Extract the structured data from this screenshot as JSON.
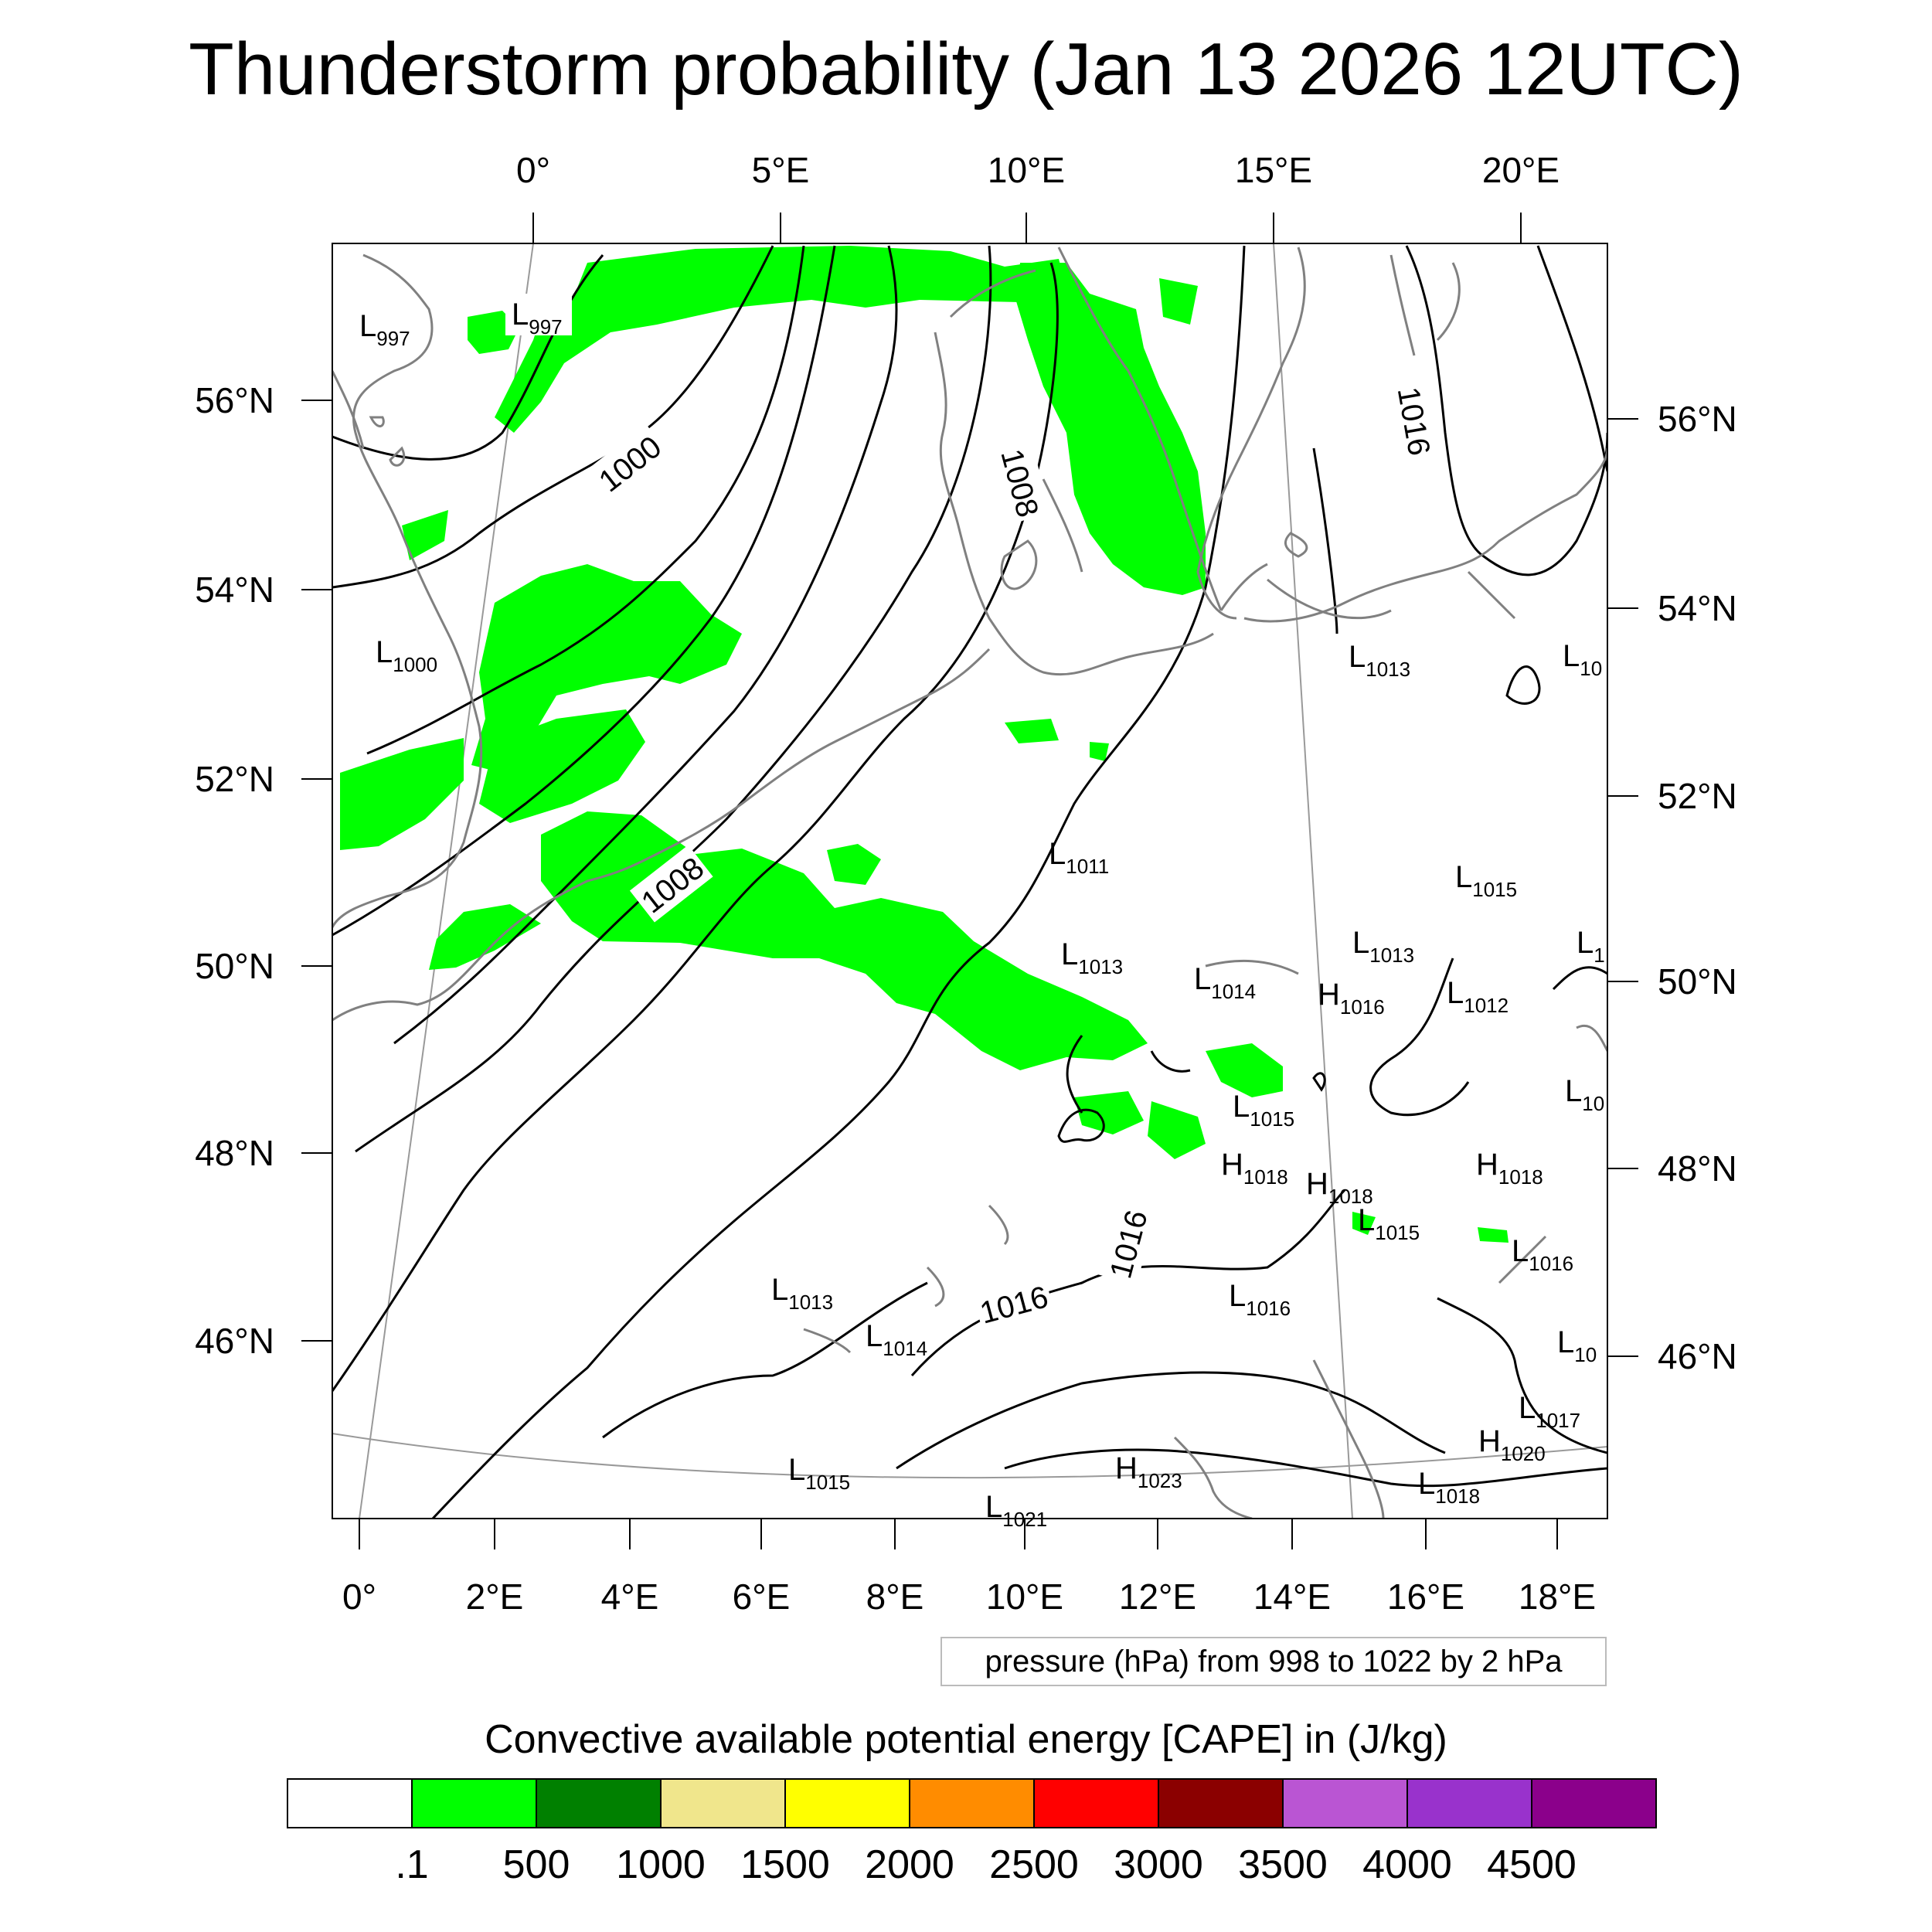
{
  "title": "Thunderstorm probability (Jan 13 2026 12UTC)",
  "top_lon_labels": [
    "0°",
    "5°E",
    "10°E",
    "15°E",
    "20°E"
  ],
  "bottom_lon_labels": [
    "0°",
    "2°E",
    "4°E",
    "6°E",
    "8°E",
    "10°E",
    "12°E",
    "14°E",
    "16°E",
    "18°E"
  ],
  "left_lat_labels": [
    "56°N",
    "54°N",
    "52°N",
    "50°N",
    "48°N",
    "46°N"
  ],
  "right_lat_labels": [
    "56°N",
    "54°N",
    "52°N",
    "50°N",
    "48°N",
    "46°N"
  ],
  "pressure_note": "pressure (hPa) from 998 to 1022 by 2 hPa",
  "colorbar": {
    "title": "Convective available potential energy [CAPE] in (J/kg)",
    "colors": [
      "#ffffff",
      "#00ff00",
      "#008000",
      "#f0e68c",
      "#ffff00",
      "#ff8c00",
      "#ff0000",
      "#8b0000",
      "#ba55d3",
      "#9932cc",
      "#8b008b"
    ],
    "labels": [
      ".1",
      "500",
      "1000",
      "1500",
      "2000",
      "2500",
      "3000",
      "3500",
      "4000",
      "4500"
    ]
  },
  "isobar_labels": [
    "1000",
    "1008",
    "1008",
    "1016",
    "1016",
    "1016"
  ],
  "pressure_centers": [
    {
      "type": "L",
      "value": "997"
    },
    {
      "type": "L",
      "value": "997"
    },
    {
      "type": "L",
      "value": "1000"
    },
    {
      "type": "L",
      "value": "1013"
    },
    {
      "type": "L",
      "value": "10"
    },
    {
      "type": "L",
      "value": "1011"
    },
    {
      "type": "L",
      "value": "1015"
    },
    {
      "type": "L",
      "value": "1013"
    },
    {
      "type": "L",
      "value": "1013"
    },
    {
      "type": "L",
      "value": "1014"
    },
    {
      "type": "H",
      "value": "1016"
    },
    {
      "type": "L",
      "value": "1012"
    },
    {
      "type": "L",
      "value": "1"
    },
    {
      "type": "L",
      "value": "10"
    },
    {
      "type": "L",
      "value": "1015"
    },
    {
      "type": "H",
      "value": "1018"
    },
    {
      "type": "H",
      "value": "1018"
    },
    {
      "type": "H",
      "value": "1018"
    },
    {
      "type": "L",
      "value": "1015"
    },
    {
      "type": "L",
      "value": "1016"
    },
    {
      "type": "L",
      "value": "1013"
    },
    {
      "type": "L",
      "value": "1014"
    },
    {
      "type": "L",
      "value": "1016"
    },
    {
      "type": "L",
      "value": "10"
    },
    {
      "type": "L",
      "value": "1017"
    },
    {
      "type": "H",
      "value": "1020"
    },
    {
      "type": "L",
      "value": "1015"
    },
    {
      "type": "H",
      "value": "1023"
    },
    {
      "type": "L",
      "value": "1018"
    },
    {
      "type": "L",
      "value": "1021"
    }
  ]
}
